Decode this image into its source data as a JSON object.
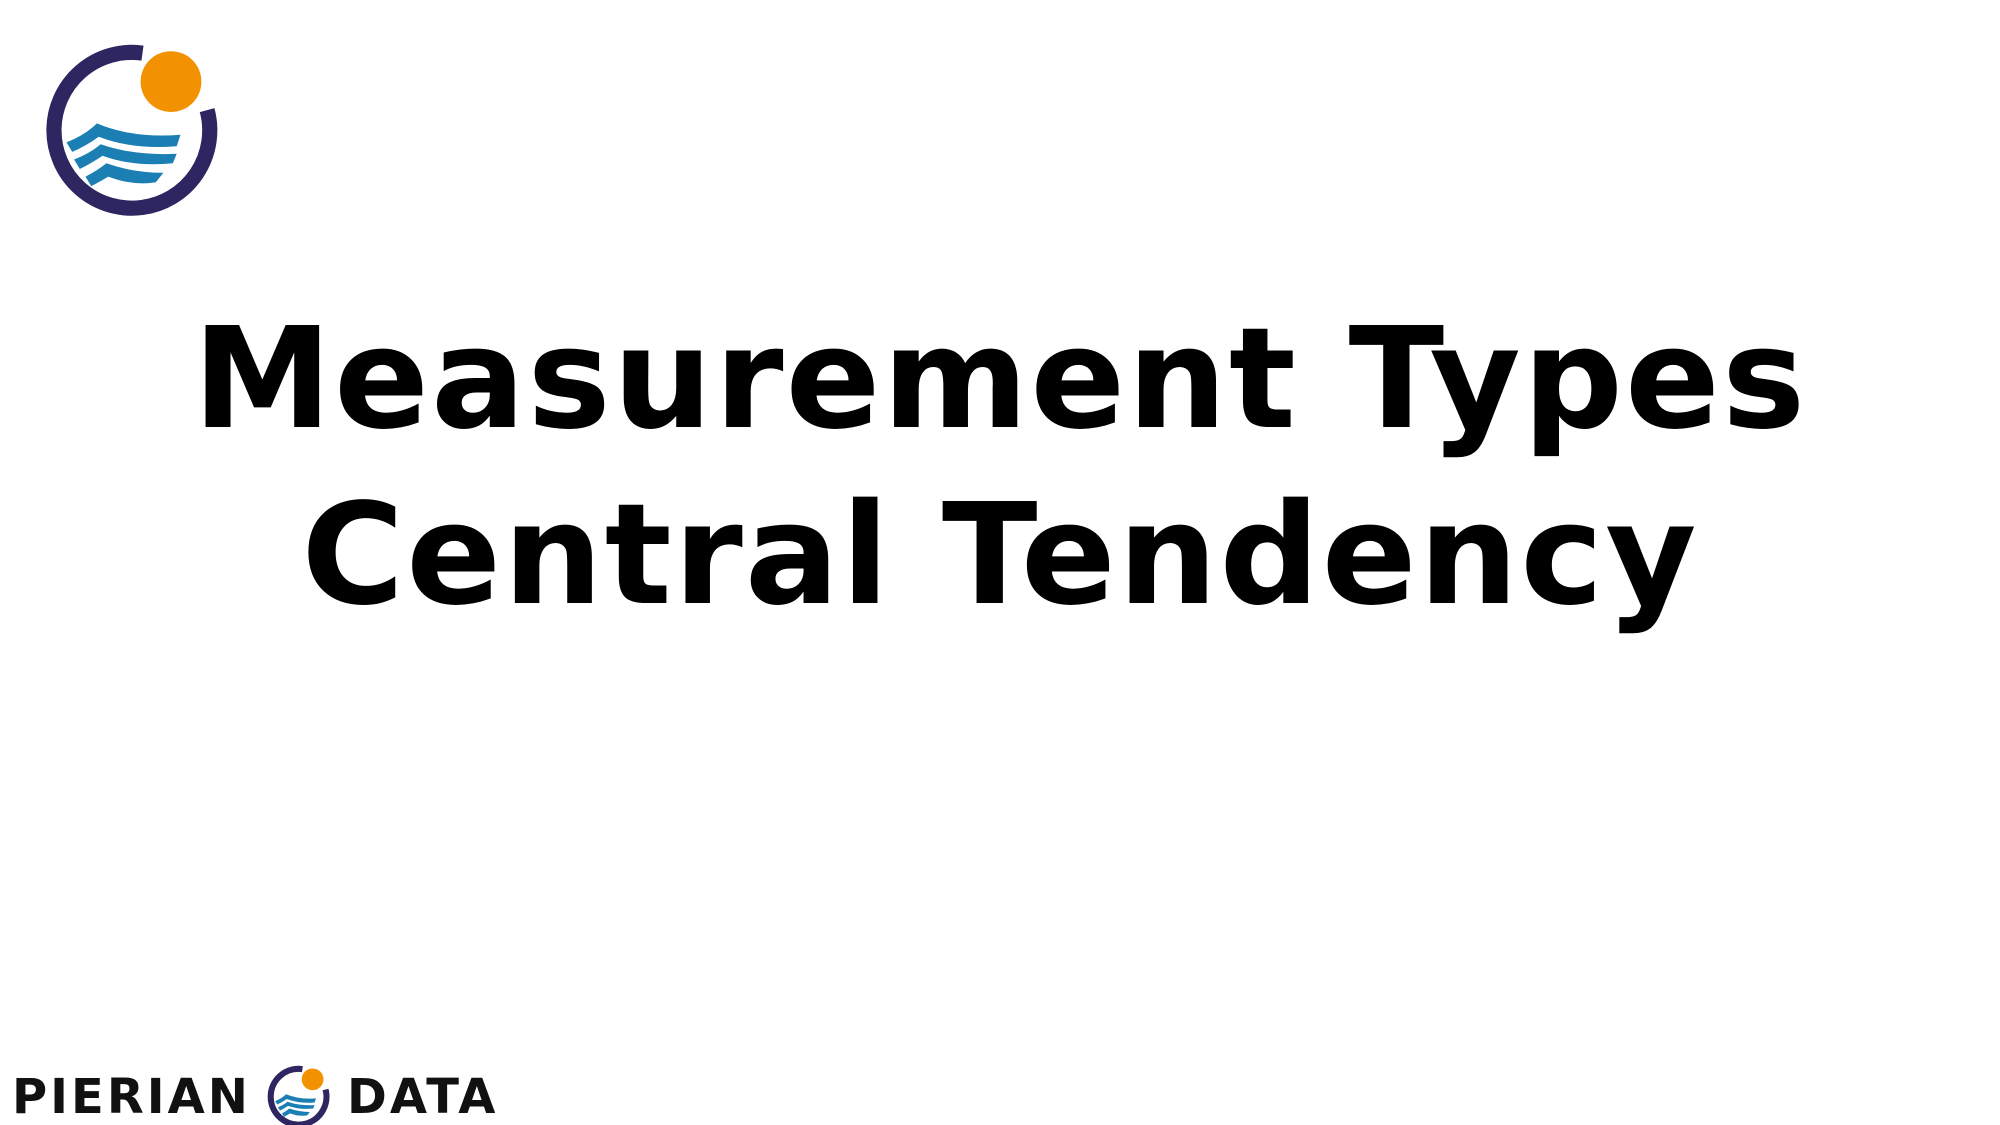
{
  "slide": {
    "title_line1": "Measurement Types",
    "title_line2": "Central Tendency"
  },
  "footer": {
    "brand_left": "PIERIAN",
    "brand_right": "DATA"
  },
  "colors": {
    "logo_ring": "#2d2660",
    "logo_sun": "#f39200",
    "logo_waves": "#1b7fb4",
    "text": "#000000"
  }
}
